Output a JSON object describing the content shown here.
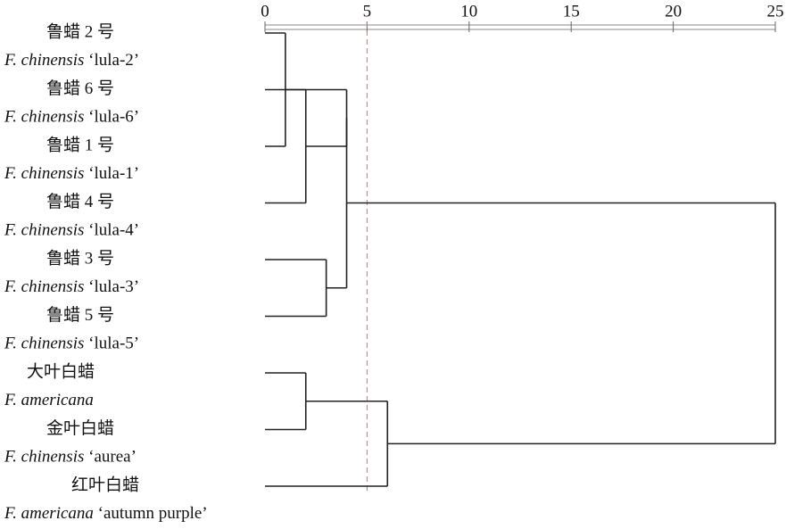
{
  "chart_data": {
    "type": "dendrogram",
    "xlim": [
      0,
      25
    ],
    "xticks": [
      0,
      5,
      10,
      15,
      20,
      25
    ],
    "cutoff": 5,
    "leaves": [
      {
        "zh": "鲁蜡 2 号",
        "en_italic": "F. chinensis",
        "en_rest": "‘lula-2’"
      },
      {
        "zh": "鲁蜡 6 号",
        "en_italic": "F. chinensis",
        "en_rest": "‘lula-6’"
      },
      {
        "zh": "鲁蜡 1 号",
        "en_italic": "F. chinensis",
        "en_rest": "‘lula-1’"
      },
      {
        "zh": "鲁蜡 4 号",
        "en_italic": "F. chinensis",
        "en_rest": "‘lula-4’"
      },
      {
        "zh": "鲁蜡 3 号",
        "en_italic": "F. chinensis",
        "en_rest": "‘lula-3’"
      },
      {
        "zh": "鲁蜡 5 号",
        "en_italic": "F. chinensis",
        "en_rest": "‘lula-5’"
      },
      {
        "zh": "大叶白蜡",
        "en_italic": "F. americana"
      },
      {
        "zh": "金叶白蜡",
        "en_italic": "F. chinensis",
        "en_rest": "‘aurea’"
      },
      {
        "zh": "红叶白蜡",
        "en_italic": "F. americana",
        "en_rest": "‘autumn purple’"
      }
    ],
    "merges": [
      {
        "left": 0,
        "right": 2,
        "height": 1
      },
      {
        "left": 1,
        "right": 3,
        "height": 2
      },
      {
        "left": 4,
        "right": 5,
        "height": 3
      },
      {
        "left": 9,
        "right": 10,
        "height": 4
      },
      {
        "left": 12,
        "right": 11,
        "height": 4
      },
      {
        "left": 6,
        "right": 7,
        "height": 2
      },
      {
        "left": 14,
        "right": 8,
        "height": 6
      },
      {
        "left": 13,
        "right": 15,
        "height": 25
      }
    ]
  }
}
